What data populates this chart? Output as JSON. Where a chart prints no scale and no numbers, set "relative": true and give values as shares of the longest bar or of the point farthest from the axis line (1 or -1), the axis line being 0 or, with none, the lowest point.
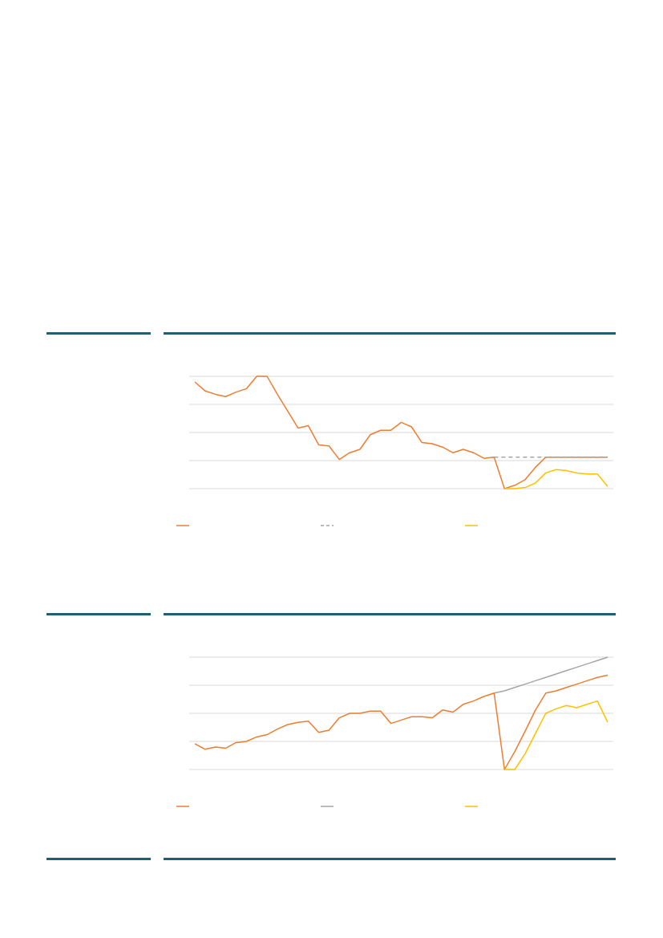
{
  "chart_data": [
    {
      "type": "line",
      "relative": true,
      "grid": "y",
      "categories": [
        null,
        null,
        null,
        null,
        null,
        null,
        null,
        null,
        null,
        null,
        null,
        null,
        null,
        null,
        null,
        null,
        null,
        null,
        null,
        null,
        null,
        null,
        null,
        null,
        null,
        null,
        null,
        null,
        null,
        null,
        null,
        null,
        null,
        null,
        null,
        null,
        null,
        null,
        null,
        null,
        null
      ],
      "series": [
        {
          "color": "#ed7d31",
          "values": [
            0.95,
            0.87,
            0.84,
            0.82,
            0.86,
            0.89,
            1,
            1,
            0.84,
            0.69,
            0.54,
            0.56,
            0.39,
            0.38,
            0.26,
            0.32,
            0.35,
            0.48,
            0.52,
            0.52,
            0.59,
            0.55,
            0.41,
            0.4,
            0.37,
            0.32,
            0.35,
            0.32,
            0.27,
            0.28,
            0,
            0.03,
            0.08,
            0.19,
            0.28,
            0.28,
            0.28,
            0.28,
            0.28,
            0.28,
            0.28
          ]
        },
        {
          "color": "#a5a5a5",
          "line_style": "dashed",
          "values": [
            null,
            null,
            null,
            null,
            null,
            null,
            null,
            null,
            null,
            null,
            null,
            null,
            null,
            null,
            null,
            null,
            null,
            null,
            null,
            null,
            null,
            null,
            null,
            null,
            null,
            null,
            null,
            null,
            null,
            0.28,
            0.28,
            0.28,
            0.28,
            0.28,
            0.28,
            0.28,
            0.28,
            0.28,
            0.28,
            0.28,
            0.28
          ]
        },
        {
          "color": "#ffc000",
          "values": [
            null,
            null,
            null,
            null,
            null,
            null,
            null,
            null,
            null,
            null,
            null,
            null,
            null,
            null,
            null,
            null,
            null,
            null,
            null,
            null,
            null,
            null,
            null,
            null,
            null,
            null,
            null,
            null,
            null,
            null,
            0,
            0,
            0.01,
            0.05,
            0.14,
            0.17,
            0.16,
            0.14,
            0.13,
            0.13,
            0.02
          ]
        }
      ]
    },
    {
      "type": "line",
      "relative": true,
      "grid": "y",
      "categories": [
        null,
        null,
        null,
        null,
        null,
        null,
        null,
        null,
        null,
        null,
        null,
        null,
        null,
        null,
        null,
        null,
        null,
        null,
        null,
        null,
        null,
        null,
        null,
        null,
        null,
        null,
        null,
        null,
        null,
        null,
        null,
        null,
        null,
        null,
        null,
        null,
        null,
        null,
        null,
        null,
        null
      ],
      "series": [
        {
          "color": "#ed7d31",
          "values": [
            0.23,
            0.18,
            0.2,
            0.19,
            0.24,
            0.25,
            0.29,
            0.31,
            0.36,
            0.4,
            0.42,
            0.43,
            0.33,
            0.35,
            0.46,
            0.5,
            0.5,
            0.52,
            0.52,
            0.41,
            0.44,
            0.47,
            0.47,
            0.46,
            0.53,
            0.51,
            0.58,
            0.61,
            0.65,
            0.68,
            0,
            0.16,
            0.34,
            0.53,
            0.68,
            0.7,
            0.73,
            0.76,
            0.79,
            0.82,
            0.84
          ]
        },
        {
          "color": "#a5a5a5",
          "values": [
            null,
            null,
            null,
            null,
            null,
            null,
            null,
            null,
            null,
            null,
            null,
            null,
            null,
            null,
            null,
            null,
            null,
            null,
            null,
            null,
            null,
            null,
            null,
            null,
            null,
            null,
            null,
            null,
            null,
            0.68,
            0.7,
            0.73,
            0.76,
            0.79,
            0.82,
            0.85,
            0.88,
            0.91,
            0.94,
            0.97,
            1
          ]
        },
        {
          "color": "#ffc000",
          "values": [
            null,
            null,
            null,
            null,
            null,
            null,
            null,
            null,
            null,
            null,
            null,
            null,
            null,
            null,
            null,
            null,
            null,
            null,
            null,
            null,
            null,
            null,
            null,
            null,
            null,
            null,
            null,
            null,
            null,
            null,
            0,
            0,
            0.14,
            0.32,
            0.5,
            0.54,
            0.57,
            0.55,
            0.58,
            0.61,
            0.42
          ]
        }
      ]
    }
  ]
}
